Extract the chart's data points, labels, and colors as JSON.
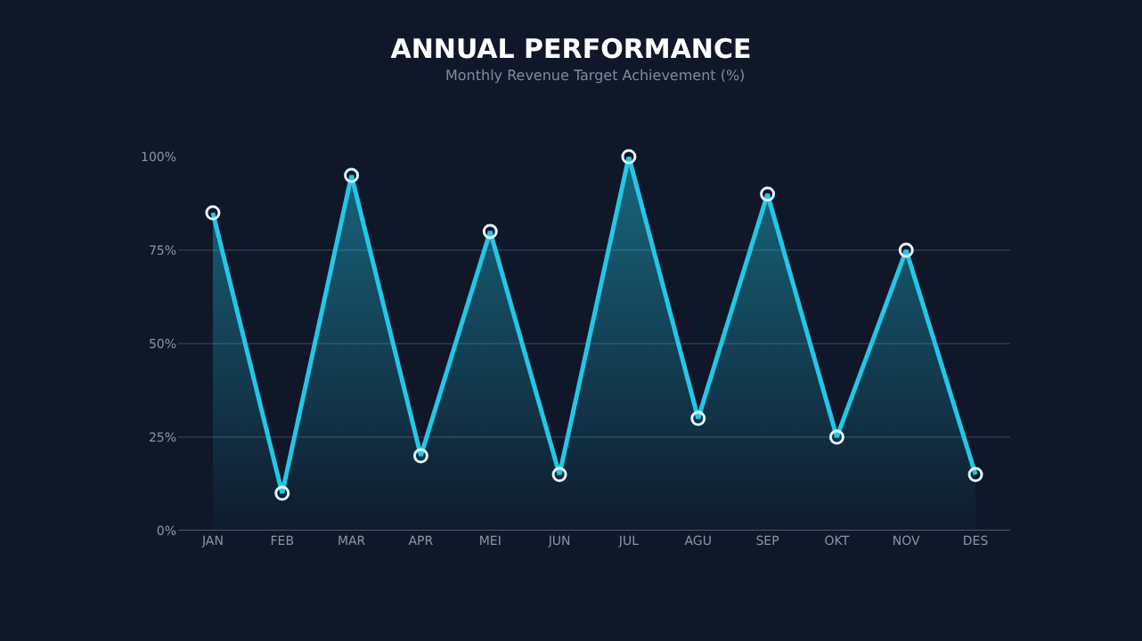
{
  "chart_data": {
    "type": "area",
    "title": "ANNUAL PERFORMANCE",
    "subtitle": "Monthly Revenue Target Achievement (%)",
    "categories": [
      "JAN",
      "FEB",
      "MAR",
      "APR",
      "MEI",
      "JUN",
      "JUL",
      "AGU",
      "SEP",
      "OKT",
      "NOV",
      "DES"
    ],
    "series": [
      {
        "color": "#22c8e6",
        "values": [
          85,
          10,
          95,
          20,
          80,
          15,
          100,
          30,
          90,
          25,
          75,
          15
        ]
      }
    ],
    "ylim": [
      0,
      100
    ],
    "yticks": [
      {
        "value": 0,
        "label": "0%"
      },
      {
        "value": 25,
        "label": "25%"
      },
      {
        "value": 50,
        "label": "50%"
      },
      {
        "value": 75,
        "label": "75%"
      },
      {
        "value": 100,
        "label": "100%"
      }
    ],
    "grid": "y",
    "marker": "circle"
  }
}
